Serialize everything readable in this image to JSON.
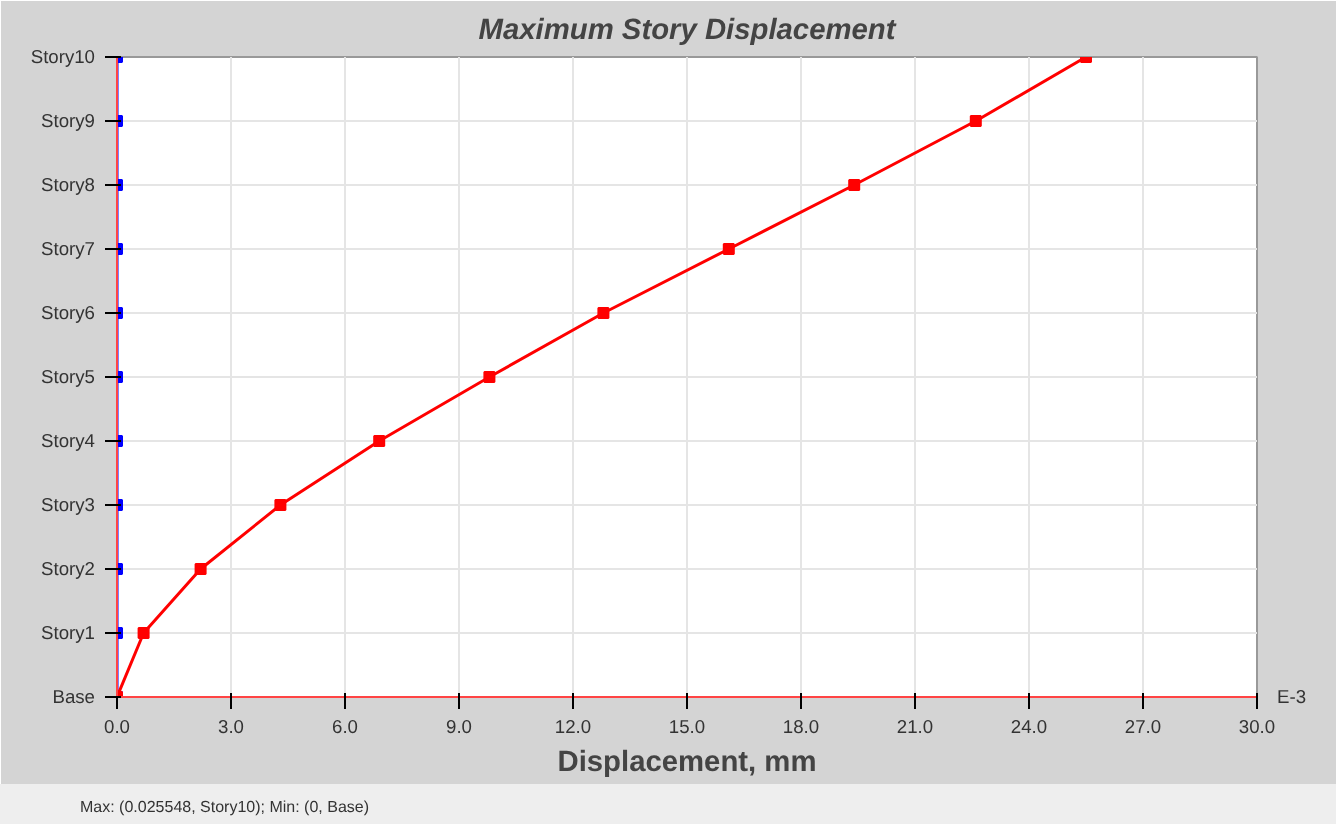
{
  "chart_data": {
    "type": "line",
    "orientation": "horizontal",
    "title": "Maximum Story Displacement",
    "xlabel": "Displacement, mm",
    "categories": [
      "Story10",
      "Story9",
      "Story8",
      "Story7",
      "Story6",
      "Story5",
      "Story4",
      "Story3",
      "Story2",
      "Story1",
      "Base"
    ],
    "series": [
      {
        "color": "#0000ff",
        "values": [
          0,
          0,
          0,
          0,
          0,
          0,
          0,
          0,
          0,
          0,
          0
        ]
      },
      {
        "color": "#ff0000",
        "values": [
          25.5,
          22.6,
          19.4,
          16.1,
          12.8,
          9.8,
          6.9,
          4.3,
          2.2,
          0.7,
          0
        ]
      }
    ],
    "xlim": [
      0,
      30
    ],
    "xticks": [
      {
        "value": 0,
        "label": "0.0"
      },
      {
        "value": 3,
        "label": "3.0"
      },
      {
        "value": 6,
        "label": "6.0"
      },
      {
        "value": 9,
        "label": "9.0"
      },
      {
        "value": 12,
        "label": "12.0"
      },
      {
        "value": 15,
        "label": "15.0"
      },
      {
        "value": 18,
        "label": "18.0"
      },
      {
        "value": 21,
        "label": "21.0"
      },
      {
        "value": 24,
        "label": "24.0"
      },
      {
        "value": 27,
        "label": "27.0"
      },
      {
        "value": 30,
        "label": "30.0"
      }
    ],
    "annotations": [
      "E-3",
      "Max: (0.025548, Story10);  Min: (0, Base)"
    ],
    "grid": true,
    "marker": "square",
    "line_style": "solid"
  }
}
